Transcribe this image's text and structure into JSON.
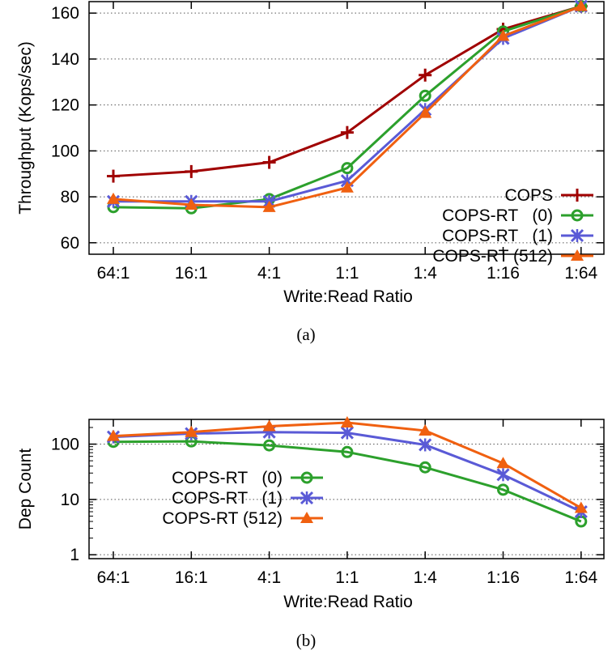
{
  "chart_data": [
    {
      "type": "line",
      "caption": "(a)",
      "title": "",
      "xlabel": "Write:Read Ratio",
      "ylabel": "Throughput (Kops/sec)",
      "ylim": [
        55,
        165
      ],
      "yscale": "linear",
      "yticks": [
        60,
        80,
        100,
        120,
        140,
        160
      ],
      "grid": "horizontal dotted",
      "legend_position": "bottom-right",
      "categories": [
        "64:1",
        "16:1",
        "4:1",
        "1:1",
        "1:4",
        "1:16",
        "1:64"
      ],
      "series": [
        {
          "name": "COPS",
          "color": "#a00000",
          "marker": "plus",
          "values": [
            89,
            91,
            95,
            108,
            133,
            153,
            163
          ]
        },
        {
          "name": "COPS-RT   (0)",
          "color": "#2ca02c",
          "marker": "circle",
          "values": [
            75.5,
            75,
            79,
            92.5,
            124,
            152,
            163
          ]
        },
        {
          "name": "COPS-RT   (1)",
          "color": "#5a5ad6",
          "marker": "x",
          "values": [
            78,
            78,
            78,
            87,
            118,
            149,
            163
          ]
        },
        {
          "name": "COPS-RT (512)",
          "color": "#f06010",
          "marker": "triangle",
          "values": [
            79,
            76.5,
            75.5,
            84,
            116.5,
            150,
            163
          ]
        }
      ]
    },
    {
      "type": "line",
      "caption": "(b)",
      "title": "",
      "xlabel": "Write:Read Ratio",
      "ylabel": "Dep Count",
      "yscale": "log",
      "ylim": [
        0.85,
        280
      ],
      "yticks": [
        1,
        10,
        100
      ],
      "grid": "horizontal dotted",
      "legend_position": "center-left",
      "categories": [
        "64:1",
        "16:1",
        "4:1",
        "1:1",
        "1:4",
        "1:16",
        "1:64"
      ],
      "series": [
        {
          "name": "COPS-RT   (0)",
          "color": "#2ca02c",
          "marker": "circle",
          "values": [
            110,
            112,
            95,
            72,
            38,
            15,
            4
          ]
        },
        {
          "name": "COPS-RT   (1)",
          "color": "#5a5ad6",
          "marker": "x",
          "values": [
            135,
            155,
            165,
            160,
            97,
            28,
            6
          ]
        },
        {
          "name": "COPS-RT (512)",
          "color": "#f06010",
          "marker": "triangle",
          "values": [
            140,
            165,
            210,
            245,
            175,
            45,
            7
          ]
        }
      ]
    }
  ]
}
